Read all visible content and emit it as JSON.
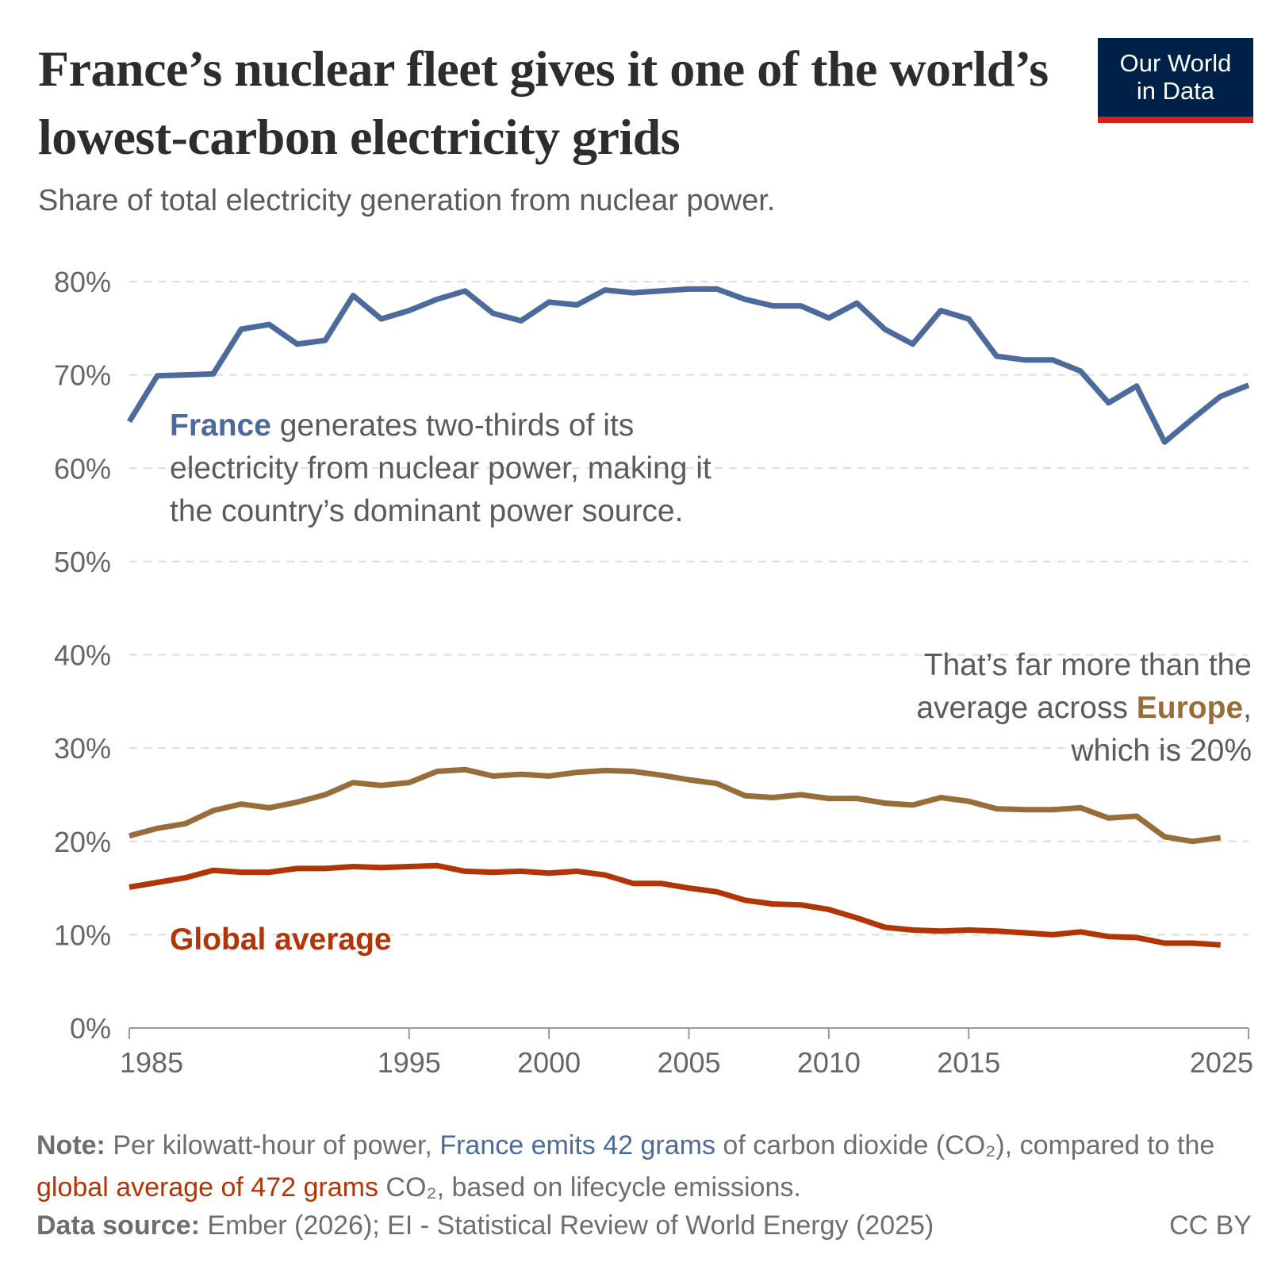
{
  "title": "France’s nuclear fleet gives it one of the world’s lowest-carbon electricity grids",
  "subtitle": "Share of total electricity generation from nuclear power.",
  "logo": {
    "line1": "Our World",
    "line2": "in Data",
    "bg": "#002147",
    "bar": "#ce261e"
  },
  "annotations": {
    "france": {
      "highlight": "France",
      "text": " generates two-thirds of its electricity from nuclear power, making it the country’s dominant power source."
    },
    "europe": {
      "before": "That’s far more than the average across ",
      "highlight": "Europe",
      "after": ", which is 20%"
    },
    "global": {
      "label": "Global average"
    }
  },
  "note": {
    "label": "Note:",
    "part1": " Per kilowatt-hour of power, ",
    "france_part": "France emits 42 grams",
    "part2": " of carbon dioxide (CO₂), compared to the ",
    "global_part": "global average of 472 grams",
    "part3": " CO₂, based on lifecycle emissions."
  },
  "source": {
    "label": "Data source:",
    "text": " Ember (2026); EI - Statistical Review of World Energy (2025)"
  },
  "license": "CC BY",
  "chart_data": {
    "type": "line",
    "title": "France’s nuclear fleet gives it one of the world’s lowest-carbon electricity grids",
    "subtitle": "Share of total electricity generation from nuclear power.",
    "xlim": [
      1985,
      2025
    ],
    "ylim": [
      0,
      80
    ],
    "grid": true,
    "legend": "inline labels",
    "x_ticks": [
      "1985",
      "1995",
      "2000",
      "2005",
      "2010",
      "2015",
      "2025"
    ],
    "y_ticks": [
      "0%",
      "10%",
      "20%",
      "30%",
      "40%",
      "50%",
      "60%",
      "70%",
      "80%"
    ],
    "series": [
      {
        "name": "France",
        "color": "#4c6a9c",
        "start_year": 1985,
        "values": [
          65.0,
          69.9,
          70.0,
          70.1,
          74.9,
          75.4,
          73.3,
          73.7,
          78.5,
          76.0,
          76.9,
          78.1,
          79.0,
          76.6,
          75.8,
          77.8,
          77.5,
          79.1,
          78.8,
          79.0,
          79.2,
          79.2,
          78.1,
          77.4,
          77.4,
          76.1,
          77.7,
          74.9,
          73.3,
          76.9,
          76.0,
          72.0,
          71.6,
          71.6,
          70.4,
          67.0,
          68.8,
          62.8,
          65.3,
          67.7,
          68.9
        ]
      },
      {
        "name": "Europe",
        "color": "#996d39",
        "start_year": 1985,
        "values": [
          20.6,
          21.4,
          21.9,
          23.3,
          24.0,
          23.6,
          24.2,
          25.0,
          26.3,
          26.0,
          26.3,
          27.5,
          27.7,
          27.0,
          27.2,
          27.0,
          27.4,
          27.6,
          27.5,
          27.1,
          26.6,
          26.2,
          24.9,
          24.7,
          25.0,
          24.6,
          24.6,
          24.1,
          23.9,
          24.7,
          24.3,
          23.5,
          23.4,
          23.4,
          23.6,
          22.5,
          22.7,
          20.5,
          20.0,
          20.4
        ]
      },
      {
        "name": "Global average",
        "color": "#b13507",
        "start_year": 1985,
        "values": [
          15.1,
          15.6,
          16.1,
          16.9,
          16.7,
          16.7,
          17.1,
          17.1,
          17.3,
          17.2,
          17.3,
          17.4,
          16.8,
          16.7,
          16.8,
          16.6,
          16.8,
          16.4,
          15.5,
          15.5,
          15.0,
          14.6,
          13.7,
          13.3,
          13.2,
          12.7,
          11.8,
          10.8,
          10.5,
          10.4,
          10.5,
          10.4,
          10.2,
          10.0,
          10.3,
          9.8,
          9.7,
          9.1,
          9.1,
          8.9
        ]
      }
    ]
  }
}
